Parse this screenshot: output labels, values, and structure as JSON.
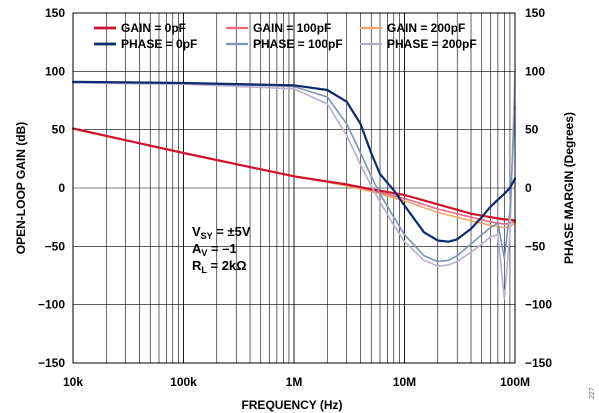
{
  "chart_data": {
    "type": "line",
    "xlabel": "FREQUENCY (Hz)",
    "ylabel_left": "OPEN-LOOP GAIN (dB)",
    "ylabel_right": "PHASE MARGIN (Degrees)",
    "x_scale": "log",
    "xlim": [
      10000,
      100000000
    ],
    "ylim_left": [
      -150,
      150
    ],
    "ylim_right": [
      -150,
      150
    ],
    "x_ticks": [
      10000,
      100000,
      1000000,
      10000000,
      100000000
    ],
    "x_tick_labels": [
      "10k",
      "100k",
      "1M",
      "10M",
      "100M"
    ],
    "y_ticks_left": [
      150,
      100,
      50,
      0,
      -50,
      -100,
      -150
    ],
    "y_tick_labels_left": [
      "150",
      "100",
      "50",
      "0",
      "−50",
      "−100",
      "−150"
    ],
    "y_ticks_right": [
      150,
      100,
      50,
      0,
      -50,
      -100,
      -150
    ],
    "y_tick_labels_right": [
      "150",
      "100",
      "50",
      "0",
      "−50",
      "−100",
      "−150"
    ],
    "grid": true,
    "legend_position": "top",
    "annotation": {
      "line1_main": "V",
      "line1_sub": "SY",
      "line1_rest": " = ±5V",
      "line2_main": "A",
      "line2_sub": "V",
      "line2_rest": " = –1",
      "line3_main": "R",
      "line3_sub": "L",
      "line3_rest": " = 2kΩ"
    },
    "figure_id": "227",
    "series": [
      {
        "name": "GAIN = 0pF",
        "color": "#d0102c",
        "width": 2.2,
        "x": [
          10000,
          100000,
          1000000,
          3000000,
          5000000,
          10000000,
          20000000,
          40000000,
          60000000,
          80000000,
          90000000,
          100000000
        ],
        "y": [
          51,
          30,
          10,
          3,
          -1,
          -6,
          -14,
          -22,
          -25,
          -27,
          -27,
          -28
        ]
      },
      {
        "name": "GAIN = 100pF",
        "color": "#e86a7c",
        "width": 1.6,
        "x": [
          10000,
          100000,
          1000000,
          3000000,
          5000000,
          10000000,
          20000000,
          40000000,
          60000000,
          80000000,
          90000000,
          100000000
        ],
        "y": [
          51,
          30,
          10,
          3,
          -2,
          -9,
          -18,
          -25,
          -29,
          -31,
          -30,
          -29
        ]
      },
      {
        "name": "GAIN = 200pF",
        "color": "#f3a76a",
        "width": 1.6,
        "x": [
          10000,
          100000,
          1000000,
          3000000,
          5000000,
          10000000,
          20000000,
          40000000,
          60000000,
          80000000,
          90000000,
          100000000
        ],
        "y": [
          51,
          30,
          10,
          2,
          -3,
          -11,
          -21,
          -28,
          -32,
          -34,
          -33,
          -30
        ]
      },
      {
        "name": "PHASE = 0pF",
        "color": "#0d2c6e",
        "width": 2.2,
        "x": [
          10000,
          100000,
          1000000,
          2000000,
          3000000,
          4000000,
          5000000,
          6000000,
          8000000,
          10000000,
          15000000,
          20000000,
          25000000,
          30000000,
          40000000,
          50000000,
          60000000,
          70000000,
          80000000,
          90000000,
          100000000
        ],
        "y": [
          91,
          90,
          88,
          84,
          74,
          55,
          30,
          12,
          -2,
          -15,
          -38,
          -45,
          -46,
          -44,
          -35,
          -25,
          -16,
          -10,
          -5,
          0,
          8
        ]
      },
      {
        "name": "PHASE = 100pF",
        "color": "#7e93b8",
        "width": 1.6,
        "x": [
          10000,
          100000,
          1000000,
          2000000,
          3000000,
          4000000,
          5000000,
          6000000,
          8000000,
          10000000,
          15000000,
          20000000,
          25000000,
          30000000,
          40000000,
          50000000,
          60000000,
          70000000,
          80000000,
          90000000,
          100000000
        ],
        "y": [
          91,
          90,
          87,
          78,
          55,
          30,
          10,
          -5,
          -25,
          -40,
          -58,
          -63,
          -62,
          -58,
          -48,
          -40,
          -34,
          -30,
          -60,
          -20,
          70
        ]
      },
      {
        "name": "PHASE = 200pF",
        "color": "#b9add2",
        "width": 1.6,
        "x": [
          10000,
          100000,
          1000000,
          2000000,
          3000000,
          4000000,
          5000000,
          6000000,
          8000000,
          10000000,
          15000000,
          20000000,
          25000000,
          30000000,
          40000000,
          50000000,
          60000000,
          70000000,
          80000000,
          90000000,
          100000000
        ],
        "y": [
          90,
          89,
          85,
          72,
          45,
          20,
          2,
          -12,
          -32,
          -46,
          -62,
          -67,
          -66,
          -63,
          -55,
          -48,
          -42,
          -40,
          -95,
          -40,
          100
        ]
      }
    ]
  }
}
